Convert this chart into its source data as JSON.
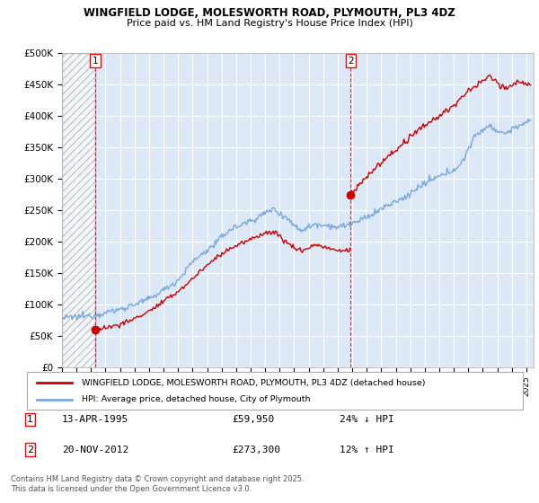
{
  "title_line1": "WINGFIELD LODGE, MOLESWORTH ROAD, PLYMOUTH, PL3 4DZ",
  "title_line2": "Price paid vs. HM Land Registry's House Price Index (HPI)",
  "ylabel_ticks": [
    "£0",
    "£50K",
    "£100K",
    "£150K",
    "£200K",
    "£250K",
    "£300K",
    "£350K",
    "£400K",
    "£450K",
    "£500K"
  ],
  "ytick_values": [
    0,
    50000,
    100000,
    150000,
    200000,
    250000,
    300000,
    350000,
    400000,
    450000,
    500000
  ],
  "ylim": [
    0,
    500000
  ],
  "xlim_start": 1993.0,
  "xlim_end": 2025.5,
  "sale1_x": 1995.28,
  "sale1_y": 59950,
  "sale1_label": "1",
  "sale2_x": 2012.9,
  "sale2_y": 273300,
  "sale2_label": "2",
  "sale_color": "#cc0000",
  "hpi_color": "#7aaadd",
  "legend_entry1": "WINGFIELD LODGE, MOLESWORTH ROAD, PLYMOUTH, PL3 4DZ (detached house)",
  "legend_entry2": "HPI: Average price, detached house, City of Plymouth",
  "footer_line1": "Contains HM Land Registry data © Crown copyright and database right 2025.",
  "footer_line2": "This data is licensed under the Open Government Licence v3.0.",
  "table_row1_num": "1",
  "table_row1_date": "13-APR-1995",
  "table_row1_price": "£59,950",
  "table_row1_hpi": "24% ↓ HPI",
  "table_row2_num": "2",
  "table_row2_date": "20-NOV-2012",
  "table_row2_price": "£273,300",
  "table_row2_hpi": "12% ↑ HPI",
  "background_color": "#dce8f5",
  "grid_color": "#ffffff"
}
